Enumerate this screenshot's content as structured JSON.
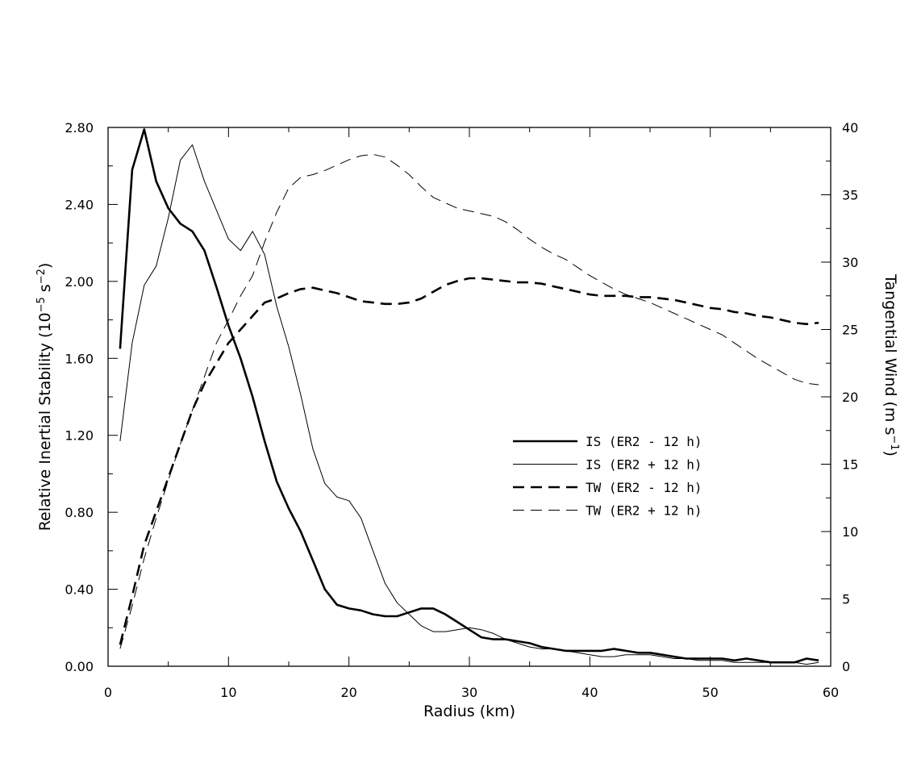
{
  "chart_data": {
    "type": "line",
    "xlabel": "Radius (km)",
    "ylabel": "Relative Inertial Stability (10^-5 s^-2)",
    "y2label": "Tangential Wind (m s^-1)",
    "xlim": [
      0,
      60
    ],
    "ylim": [
      0,
      2.8
    ],
    "y2lim": [
      0,
      40
    ],
    "x_ticks": [
      "0",
      "10",
      "20",
      "30",
      "40",
      "50",
      "60"
    ],
    "y_ticks": [
      "0.00",
      "0.40",
      "0.80",
      "1.20",
      "1.60",
      "2.00",
      "2.40",
      "2.80"
    ],
    "y2_ticks": [
      "0",
      "5",
      "10",
      "15",
      "20",
      "25",
      "30",
      "35",
      "40"
    ],
    "grid": false,
    "legend_position": "center-right",
    "series": [
      {
        "name": "IS (ER2 - 12 h)",
        "axis": "left",
        "style": "thick-solid",
        "x": [
          1,
          2,
          3,
          4,
          5,
          6,
          7,
          8,
          9,
          10,
          11,
          12,
          13,
          14,
          15,
          16,
          17,
          18,
          19,
          20,
          21,
          22,
          23,
          24,
          25,
          26,
          27,
          28,
          29,
          30,
          31,
          32,
          33,
          34,
          35,
          36,
          37,
          38,
          39,
          40,
          41,
          42,
          43,
          44,
          45,
          46,
          47,
          48,
          49,
          50,
          51,
          52,
          53,
          54,
          55,
          56,
          57,
          58,
          59
        ],
        "values": [
          1.65,
          2.58,
          2.79,
          2.52,
          2.38,
          2.3,
          2.26,
          2.16,
          1.97,
          1.77,
          1.6,
          1.4,
          1.17,
          0.96,
          0.82,
          0.7,
          0.55,
          0.4,
          0.32,
          0.3,
          0.29,
          0.27,
          0.26,
          0.26,
          0.28,
          0.3,
          0.3,
          0.27,
          0.23,
          0.19,
          0.15,
          0.14,
          0.14,
          0.13,
          0.12,
          0.1,
          0.09,
          0.08,
          0.08,
          0.08,
          0.08,
          0.09,
          0.08,
          0.07,
          0.07,
          0.06,
          0.05,
          0.04,
          0.04,
          0.04,
          0.04,
          0.03,
          0.04,
          0.03,
          0.02,
          0.02,
          0.02,
          0.04,
          0.03
        ]
      },
      {
        "name": "IS (ER2 + 12 h)",
        "axis": "left",
        "style": "thin-solid",
        "x": [
          1,
          2,
          3,
          4,
          5,
          6,
          7,
          8,
          9,
          10,
          11,
          12,
          13,
          14,
          15,
          16,
          17,
          18,
          19,
          20,
          21,
          22,
          23,
          24,
          25,
          26,
          27,
          28,
          29,
          30,
          31,
          32,
          33,
          34,
          35,
          36,
          37,
          38,
          39,
          40,
          41,
          42,
          43,
          44,
          45,
          46,
          47,
          48,
          49,
          50,
          51,
          52,
          53,
          54,
          55,
          56,
          57,
          58,
          59
        ],
        "values": [
          1.17,
          1.68,
          1.98,
          2.08,
          2.33,
          2.63,
          2.71,
          2.52,
          2.37,
          2.22,
          2.16,
          2.26,
          2.14,
          1.87,
          1.66,
          1.41,
          1.13,
          0.95,
          0.88,
          0.86,
          0.77,
          0.6,
          0.43,
          0.33,
          0.27,
          0.21,
          0.18,
          0.18,
          0.19,
          0.2,
          0.19,
          0.17,
          0.14,
          0.12,
          0.1,
          0.09,
          0.09,
          0.08,
          0.07,
          0.06,
          0.05,
          0.05,
          0.06,
          0.06,
          0.06,
          0.05,
          0.04,
          0.04,
          0.03,
          0.03,
          0.03,
          0.02,
          0.02,
          0.02,
          0.02,
          0.02,
          0.02,
          0.01,
          0.02
        ]
      },
      {
        "name": "TW (ER2 - 12 h)",
        "axis": "right",
        "style": "thick-dashed",
        "x": [
          1,
          2,
          3,
          4,
          5,
          6,
          7,
          8,
          9,
          10,
          11,
          12,
          13,
          14,
          15,
          16,
          17,
          18,
          19,
          20,
          21,
          22,
          23,
          24,
          25,
          26,
          27,
          28,
          29,
          30,
          31,
          32,
          33,
          34,
          35,
          36,
          37,
          38,
          39,
          40,
          41,
          42,
          43,
          44,
          45,
          46,
          47,
          48,
          49,
          50,
          51,
          52,
          53,
          54,
          55,
          56,
          57,
          58,
          59
        ],
        "values": [
          1.6,
          5.2,
          9.0,
          11.5,
          14.0,
          16.5,
          19.0,
          21.0,
          22.5,
          24.0,
          25.0,
          26.0,
          27.0,
          27.3,
          27.7,
          28.0,
          28.1,
          27.9,
          27.7,
          27.4,
          27.1,
          27.0,
          26.9,
          26.9,
          27.0,
          27.3,
          27.8,
          28.3,
          28.6,
          28.8,
          28.8,
          28.7,
          28.6,
          28.5,
          28.5,
          28.4,
          28.2,
          28.0,
          27.8,
          27.6,
          27.5,
          27.5,
          27.5,
          27.4,
          27.4,
          27.3,
          27.2,
          27.0,
          26.8,
          26.6,
          26.5,
          26.3,
          26.2,
          26.0,
          25.9,
          25.7,
          25.5,
          25.4,
          25.5
        ]
      },
      {
        "name": "TW (ER2 + 12 h)",
        "axis": "right",
        "style": "thin-dashed",
        "x": [
          1,
          2,
          3,
          4,
          5,
          6,
          7,
          8,
          9,
          10,
          11,
          12,
          13,
          14,
          15,
          16,
          17,
          18,
          19,
          20,
          21,
          22,
          23,
          24,
          25,
          26,
          27,
          28,
          29,
          30,
          31,
          32,
          33,
          34,
          35,
          36,
          37,
          38,
          39,
          40,
          41,
          42,
          43,
          44,
          45,
          46,
          47,
          48,
          49,
          50,
          51,
          52,
          53,
          54,
          55,
          56,
          57,
          58,
          59
        ],
        "values": [
          1.3,
          4.5,
          8.0,
          11.0,
          13.8,
          16.5,
          19.0,
          21.5,
          24.0,
          25.7,
          27.5,
          29.0,
          31.5,
          33.7,
          35.5,
          36.3,
          36.5,
          36.8,
          37.2,
          37.6,
          37.9,
          38.0,
          37.8,
          37.2,
          36.5,
          35.6,
          34.8,
          34.4,
          34.0,
          33.8,
          33.6,
          33.4,
          33.0,
          32.4,
          31.7,
          31.1,
          30.6,
          30.2,
          29.6,
          29.0,
          28.5,
          28.0,
          27.6,
          27.3,
          27.0,
          26.6,
          26.2,
          25.8,
          25.4,
          25.0,
          24.6,
          24.0,
          23.4,
          22.8,
          22.3,
          21.8,
          21.3,
          21.0,
          20.9
        ]
      }
    ]
  }
}
